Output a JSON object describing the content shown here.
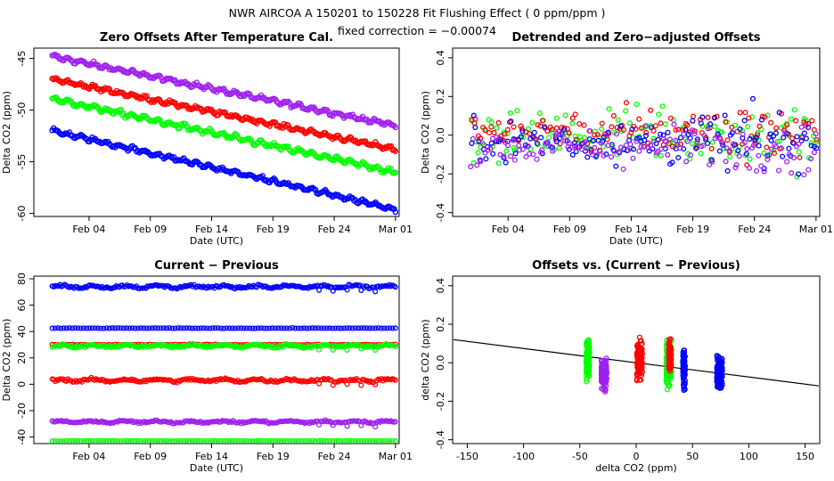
{
  "figure": {
    "title": "NWR   AIRCOA A   150201 to 150228   Fit Flushing Effect ( 0 ppm/ppm )",
    "subtitle": "fixed correction = −0.00074"
  },
  "colors": {
    "purple": "#a020f0",
    "red": "#ff0000",
    "green": "#00ff00",
    "blue": "#0000ff",
    "line": "#000000"
  },
  "chart_data": [
    {
      "id": "zero-offsets",
      "type": "scatter",
      "title": "Zero Offsets After Temperature Cal.",
      "xlabel": "Date (UTC)",
      "ylabel": "Delta CO2 (ppm)",
      "xlim": [
        -1.5,
        28.3
      ],
      "ylim": [
        -60.3,
        -44.0
      ],
      "xticks": [
        3,
        8,
        13,
        18,
        23,
        28
      ],
      "xtick_labels": [
        "Feb 04",
        "Feb 09",
        "Feb 14",
        "Feb 19",
        "Feb 24",
        "Mar 01"
      ],
      "yticks": [
        -45,
        -50,
        -55,
        -60
      ],
      "ytick_labels": [
        "-45",
        "-50",
        "-55",
        "-60"
      ],
      "series": [
        {
          "name": "purple",
          "color": "purple",
          "start": -44.8,
          "end": -51.5,
          "noise": 0.15,
          "dense": true
        },
        {
          "name": "red",
          "color": "red",
          "start": -47.0,
          "end": -53.8,
          "noise": 0.15,
          "dense": true
        },
        {
          "name": "green",
          "color": "green",
          "start": -48.9,
          "end": -56.0,
          "noise": 0.18,
          "dense": true
        },
        {
          "name": "blue",
          "color": "blue",
          "start": -52.0,
          "end": -59.6,
          "noise": 0.15,
          "dense": true
        }
      ]
    },
    {
      "id": "detrended",
      "type": "scatter",
      "title": "Detrended and Zero−adjusted Offsets",
      "xlabel": "Date (UTC)",
      "ylabel": "Delta CO2 (ppm)",
      "xlim": [
        -1.5,
        28.3
      ],
      "ylim": [
        -0.42,
        0.45
      ],
      "xticks": [
        3,
        8,
        13,
        18,
        23,
        28
      ],
      "xtick_labels": [
        "Feb 04",
        "Feb 09",
        "Feb 14",
        "Feb 19",
        "Feb 24",
        "Mar 01"
      ],
      "yticks": [
        -0.4,
        -0.2,
        0.0,
        0.2,
        0.4
      ],
      "ytick_labels": [
        "-0.4",
        "-0.2",
        "0.0",
        "0.2",
        "0.4"
      ],
      "series": [
        {
          "name": "green",
          "color": "green",
          "mean": 0.0,
          "spread": 0.11
        },
        {
          "name": "red",
          "color": "red",
          "mean": 0.02,
          "spread": 0.09
        },
        {
          "name": "blue",
          "color": "blue",
          "mean": -0.03,
          "spread": 0.1
        },
        {
          "name": "purple",
          "color": "purple",
          "mean": -0.06,
          "spread": 0.08
        }
      ]
    },
    {
      "id": "current-previous",
      "type": "scatter",
      "title": "Current − Previous",
      "xlabel": "Date (UTC)",
      "ylabel": "Delta CO2 (ppm)",
      "xlim": [
        -1.5,
        28.3
      ],
      "ylim": [
        -45,
        82
      ],
      "xticks": [
        3,
        8,
        13,
        18,
        23,
        28
      ],
      "xtick_labels": [
        "Feb 04",
        "Feb 09",
        "Feb 14",
        "Feb 19",
        "Feb 24",
        "Mar 01"
      ],
      "yticks": [
        -40,
        -20,
        0,
        20,
        40,
        60,
        80
      ],
      "ytick_labels": [
        "-40",
        "-20",
        "0",
        "20",
        "40",
        "60",
        "80"
      ],
      "series": [
        {
          "name": "blue-high",
          "color": "blue",
          "level": 74,
          "noise": 1.0,
          "dense": true
        },
        {
          "name": "blue-ring",
          "color": "blue",
          "level": 42.5,
          "noise": 0.2,
          "dense": false
        },
        {
          "name": "red-ring",
          "color": "red",
          "level": 30,
          "noise": 0.3,
          "dense": false
        },
        {
          "name": "green-mid",
          "color": "green",
          "level": 29,
          "noise": 1.0,
          "dense": true
        },
        {
          "name": "red-low",
          "color": "red",
          "level": 3,
          "noise": 1.0,
          "dense": true
        },
        {
          "name": "purple-low",
          "color": "purple",
          "level": -28.5,
          "noise": 0.8,
          "dense": true
        },
        {
          "name": "green-ring",
          "color": "green",
          "level": -43,
          "noise": 0.2,
          "dense": false
        }
      ]
    },
    {
      "id": "offsets-vs-diff",
      "type": "scatter",
      "title": "Offsets vs. (Current − Previous)",
      "xlabel": "delta CO2 (ppm)",
      "ylabel": "delta CO2 (ppm)",
      "xlim": [
        -163,
        163
      ],
      "ylim": [
        -0.42,
        0.45
      ],
      "xticks": [
        -150,
        -100,
        -50,
        0,
        50,
        100,
        150
      ],
      "xtick_labels": [
        "-150",
        "-100",
        "-50",
        "0",
        "50",
        "100",
        "150"
      ],
      "yticks": [
        -0.4,
        -0.2,
        0.0,
        0.2,
        0.4
      ],
      "ytick_labels": [
        "-0.4",
        "-0.2",
        "0.0",
        "0.2",
        "0.4"
      ],
      "fit_line": {
        "slope": -0.00074,
        "intercept": 0.0
      },
      "series": [
        {
          "name": "green-left",
          "color": "green",
          "x": -43,
          "xspread": 1.5,
          "ymean": 0.02,
          "yspread": 0.09
        },
        {
          "name": "purple",
          "color": "purple",
          "x": -28.5,
          "xspread": 2.5,
          "ymean": -0.06,
          "yspread": 0.08
        },
        {
          "name": "red-center",
          "color": "red",
          "x": 3,
          "xspread": 2.5,
          "ymean": 0.01,
          "yspread": 0.09
        },
        {
          "name": "green-right",
          "color": "green",
          "x": 29,
          "xspread": 2.5,
          "ymean": 0.0,
          "yspread": 0.11
        },
        {
          "name": "red-right",
          "color": "red",
          "x": 30,
          "xspread": 1.0,
          "ymean": 0.03,
          "yspread": 0.08
        },
        {
          "name": "blue-mid",
          "color": "blue",
          "x": 42.5,
          "xspread": 1.0,
          "ymean": -0.03,
          "yspread": 0.09
        },
        {
          "name": "blue-right",
          "color": "blue",
          "x": 74,
          "xspread": 2.5,
          "ymean": -0.05,
          "yspread": 0.09
        }
      ]
    }
  ]
}
